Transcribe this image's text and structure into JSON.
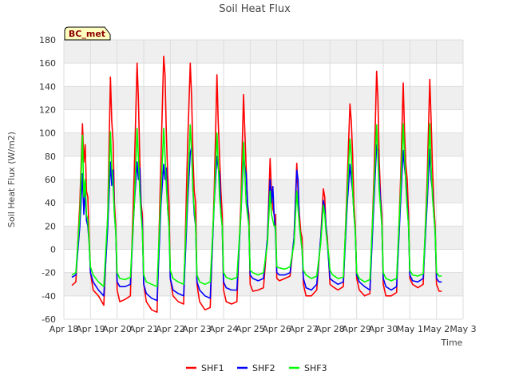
{
  "chart_data": {
    "type": "line",
    "title": "Soil Heat Flux",
    "xlabel": "Time",
    "ylabel": "Soil Heat Flux (W/m2)",
    "badge": "BC_met",
    "ylim": [
      -60,
      180
    ],
    "yticks": [
      -60,
      -40,
      -20,
      0,
      20,
      40,
      60,
      80,
      100,
      120,
      140,
      160,
      180
    ],
    "xlim": [
      0,
      15
    ],
    "xticks": [
      {
        "x": 0,
        "label": "Apr 18"
      },
      {
        "x": 1,
        "label": "Apr 19"
      },
      {
        "x": 2,
        "label": "Apr 20"
      },
      {
        "x": 3,
        "label": "Apr 21"
      },
      {
        "x": 4,
        "label": "Apr 22"
      },
      {
        "x": 5,
        "label": "Apr 23"
      },
      {
        "x": 6,
        "label": "Apr 24"
      },
      {
        "x": 7,
        "label": "Apr 25"
      },
      {
        "x": 8,
        "label": "Apr 26"
      },
      {
        "x": 9,
        "label": "Apr 27"
      },
      {
        "x": 10,
        "label": "Apr 28"
      },
      {
        "x": 11,
        "label": "Apr 29"
      },
      {
        "x": 12,
        "label": "Apr 30"
      },
      {
        "x": 13,
        "label": "May 1"
      },
      {
        "x": 14,
        "label": "May 2"
      },
      {
        "x": 15,
        "label": "May 3"
      }
    ],
    "series": [
      {
        "name": "SHF1",
        "color": "#ff0000",
        "x": [
          0.3,
          0.45,
          0.6,
          0.7,
          0.75,
          0.8,
          0.85,
          0.9,
          0.95,
          1.0,
          1.1,
          1.3,
          1.5,
          1.65,
          1.75,
          1.8,
          1.85,
          1.9,
          1.95,
          2.0,
          2.1,
          2.3,
          2.5,
          2.65,
          2.75,
          2.8,
          2.85,
          2.9,
          2.95,
          3.0,
          3.1,
          3.3,
          3.5,
          3.65,
          3.75,
          3.8,
          3.85,
          3.9,
          3.95,
          4.0,
          4.1,
          4.3,
          4.5,
          4.65,
          4.75,
          4.8,
          4.85,
          4.9,
          4.95,
          5.0,
          5.1,
          5.3,
          5.5,
          5.65,
          5.75,
          5.8,
          5.85,
          5.9,
          5.95,
          6.0,
          6.1,
          6.3,
          6.5,
          6.65,
          6.75,
          6.8,
          6.85,
          6.9,
          6.95,
          7.0,
          7.1,
          7.3,
          7.5,
          7.65,
          7.75,
          7.8,
          7.85,
          7.9,
          7.95,
          8.0,
          8.1,
          8.3,
          8.5,
          8.65,
          8.75,
          8.8,
          8.85,
          8.9,
          8.95,
          9.0,
          9.1,
          9.3,
          9.5,
          9.65,
          9.75,
          9.8,
          9.85,
          9.9,
          9.95,
          10.0,
          10.1,
          10.3,
          10.5,
          10.65,
          10.75,
          10.8,
          10.85,
          10.9,
          10.95,
          11.0,
          11.1,
          11.3,
          11.5,
          11.65,
          11.75,
          11.8,
          11.85,
          11.9,
          11.95,
          12.0,
          12.1,
          12.3,
          12.5,
          12.65,
          12.75,
          12.8,
          12.85,
          12.9,
          12.95,
          13.0,
          13.1,
          13.3,
          13.5,
          13.65,
          13.75,
          13.8,
          13.85,
          13.9,
          13.95,
          14.0,
          14.1,
          14.2
        ],
        "values": [
          -31,
          -28,
          40,
          108,
          75,
          90,
          50,
          45,
          10,
          -20,
          -35,
          -40,
          -48,
          30,
          148,
          110,
          92,
          40,
          20,
          -35,
          -45,
          -43,
          -40,
          70,
          160,
          130,
          80,
          40,
          30,
          -30,
          -45,
          -52,
          -54,
          80,
          166,
          150,
          100,
          65,
          40,
          -25,
          -40,
          -45,
          -47,
          90,
          160,
          130,
          80,
          50,
          40,
          -30,
          -45,
          -52,
          -50,
          50,
          150,
          110,
          80,
          50,
          30,
          -35,
          -45,
          -47,
          -45,
          40,
          133,
          100,
          70,
          40,
          30,
          -30,
          -36,
          -35,
          -33,
          10,
          78,
          50,
          35,
          30,
          30,
          -25,
          -27,
          -25,
          -23,
          10,
          74,
          50,
          30,
          15,
          10,
          -30,
          -40,
          -40,
          -35,
          10,
          52,
          45,
          20,
          10,
          -10,
          -30,
          -32,
          -35,
          -32,
          60,
          125,
          110,
          80,
          40,
          20,
          -25,
          -35,
          -40,
          -38,
          60,
          153,
          130,
          75,
          45,
          30,
          -30,
          -40,
          -40,
          -37,
          60,
          143,
          100,
          73,
          60,
          30,
          -25,
          -30,
          -33,
          -30,
          60,
          146,
          110,
          70,
          40,
          20,
          -30,
          -36,
          -36
        ]
      },
      {
        "name": "SHF2",
        "color": "#0000ff",
        "x": [
          0.3,
          0.45,
          0.6,
          0.7,
          0.75,
          0.8,
          0.85,
          0.9,
          0.95,
          1.0,
          1.1,
          1.3,
          1.5,
          1.65,
          1.75,
          1.8,
          1.85,
          1.9,
          1.95,
          2.0,
          2.1,
          2.3,
          2.5,
          2.65,
          2.75,
          2.8,
          2.85,
          2.9,
          2.95,
          3.0,
          3.1,
          3.3,
          3.5,
          3.65,
          3.75,
          3.8,
          3.85,
          3.9,
          3.95,
          4.0,
          4.1,
          4.3,
          4.5,
          4.65,
          4.75,
          4.8,
          4.85,
          4.9,
          4.95,
          5.0,
          5.1,
          5.3,
          5.5,
          5.65,
          5.75,
          5.8,
          5.85,
          5.9,
          5.95,
          6.0,
          6.1,
          6.3,
          6.5,
          6.65,
          6.75,
          6.8,
          6.85,
          6.9,
          6.95,
          7.0,
          7.1,
          7.3,
          7.5,
          7.65,
          7.75,
          7.8,
          7.85,
          7.9,
          7.95,
          8.0,
          8.1,
          8.3,
          8.5,
          8.65,
          8.75,
          8.8,
          8.85,
          8.9,
          8.95,
          9.0,
          9.1,
          9.3,
          9.5,
          9.65,
          9.75,
          9.8,
          9.85,
          9.9,
          9.95,
          10.0,
          10.1,
          10.3,
          10.5,
          10.65,
          10.75,
          10.8,
          10.85,
          10.9,
          10.95,
          11.0,
          11.1,
          11.3,
          11.5,
          11.65,
          11.75,
          11.8,
          11.85,
          11.9,
          11.95,
          12.0,
          12.1,
          12.3,
          12.5,
          12.65,
          12.75,
          12.8,
          12.85,
          12.9,
          12.95,
          13.0,
          13.1,
          13.3,
          13.5,
          13.65,
          13.75,
          13.8,
          13.85,
          13.9,
          13.95,
          14.0,
          14.1,
          14.2
        ],
        "values": [
          -24,
          -22,
          20,
          65,
          30,
          50,
          25,
          20,
          5,
          -20,
          -28,
          -35,
          -40,
          20,
          75,
          55,
          68,
          30,
          15,
          -28,
          -32,
          -32,
          -30,
          40,
          75,
          60,
          70,
          35,
          20,
          -30,
          -38,
          -42,
          -44,
          40,
          73,
          60,
          70,
          35,
          20,
          -25,
          -35,
          -38,
          -40,
          40,
          83,
          88,
          50,
          30,
          20,
          -28,
          -35,
          -40,
          -42,
          40,
          80,
          70,
          65,
          30,
          20,
          -28,
          -33,
          -35,
          -35,
          30,
          80,
          70,
          65,
          40,
          20,
          -22,
          -25,
          -27,
          -25,
          10,
          60,
          40,
          54,
          30,
          15,
          -20,
          -22,
          -22,
          -20,
          10,
          68,
          60,
          20,
          10,
          0,
          -25,
          -33,
          -35,
          -30,
          10,
          42,
          35,
          20,
          5,
          -10,
          -25,
          -27,
          -30,
          -28,
          40,
          73,
          60,
          50,
          30,
          15,
          -22,
          -28,
          -32,
          -35,
          40,
          90,
          85,
          60,
          40,
          20,
          -25,
          -32,
          -35,
          -32,
          40,
          85,
          70,
          60,
          40,
          20,
          -22,
          -27,
          -28,
          -25,
          40,
          86,
          60,
          50,
          30,
          15,
          -25,
          -28,
          -28
        ]
      },
      {
        "name": "SHF3",
        "color": "#00ff00",
        "x": [
          0.3,
          0.45,
          0.6,
          0.7,
          0.75,
          0.8,
          0.85,
          0.9,
          0.95,
          1.0,
          1.1,
          1.3,
          1.5,
          1.65,
          1.75,
          1.8,
          1.85,
          1.9,
          1.95,
          2.0,
          2.1,
          2.3,
          2.5,
          2.65,
          2.75,
          2.8,
          2.85,
          2.9,
          2.95,
          3.0,
          3.1,
          3.3,
          3.5,
          3.65,
          3.75,
          3.8,
          3.85,
          3.9,
          3.95,
          4.0,
          4.1,
          4.3,
          4.5,
          4.65,
          4.75,
          4.8,
          4.85,
          4.9,
          4.95,
          5.0,
          5.1,
          5.3,
          5.5,
          5.65,
          5.75,
          5.8,
          5.85,
          5.9,
          5.95,
          6.0,
          6.1,
          6.3,
          6.5,
          6.65,
          6.75,
          6.8,
          6.85,
          6.9,
          6.95,
          7.0,
          7.1,
          7.3,
          7.5,
          7.65,
          7.75,
          7.8,
          7.85,
          7.9,
          7.95,
          8.0,
          8.1,
          8.3,
          8.5,
          8.65,
          8.75,
          8.8,
          8.85,
          8.9,
          8.95,
          9.0,
          9.1,
          9.3,
          9.5,
          9.65,
          9.75,
          9.8,
          9.85,
          9.9,
          9.95,
          10.0,
          10.1,
          10.3,
          10.5,
          10.65,
          10.75,
          10.8,
          10.85,
          10.9,
          10.95,
          11.0,
          11.1,
          11.3,
          11.5,
          11.65,
          11.75,
          11.8,
          11.85,
          11.9,
          11.95,
          12.0,
          12.1,
          12.3,
          12.5,
          12.65,
          12.75,
          12.8,
          12.85,
          12.9,
          12.95,
          13.0,
          13.1,
          13.3,
          13.5,
          13.65,
          13.75,
          13.8,
          13.85,
          13.9,
          13.95,
          14.0,
          14.1,
          14.2
        ],
        "values": [
          -22,
          -20,
          30,
          98,
          45,
          60,
          30,
          25,
          5,
          -15,
          -22,
          -28,
          -32,
          30,
          101,
          70,
          55,
          30,
          15,
          -20,
          -25,
          -26,
          -24,
          40,
          104,
          80,
          50,
          30,
          15,
          -22,
          -28,
          -30,
          -32,
          50,
          104,
          80,
          55,
          35,
          20,
          -18,
          -25,
          -28,
          -30,
          50,
          107,
          85,
          50,
          35,
          20,
          -22,
          -28,
          -30,
          -28,
          40,
          100,
          75,
          45,
          30,
          20,
          -20,
          -24,
          -26,
          -24,
          30,
          92,
          65,
          40,
          30,
          20,
          -18,
          -20,
          -22,
          -20,
          5,
          50,
          30,
          25,
          20,
          20,
          -15,
          -16,
          -17,
          -15,
          5,
          50,
          35,
          20,
          10,
          0,
          -18,
          -22,
          -25,
          -23,
          5,
          38,
          30,
          15,
          5,
          -5,
          -18,
          -22,
          -25,
          -24,
          50,
          95,
          80,
          50,
          30,
          15,
          -20,
          -25,
          -28,
          -26,
          50,
          107,
          80,
          50,
          35,
          20,
          -20,
          -25,
          -27,
          -25,
          50,
          108,
          80,
          55,
          35,
          20,
          -18,
          -22,
          -23,
          -21,
          50,
          108,
          70,
          45,
          30,
          15,
          -20,
          -23,
          -23
        ]
      }
    ]
  }
}
